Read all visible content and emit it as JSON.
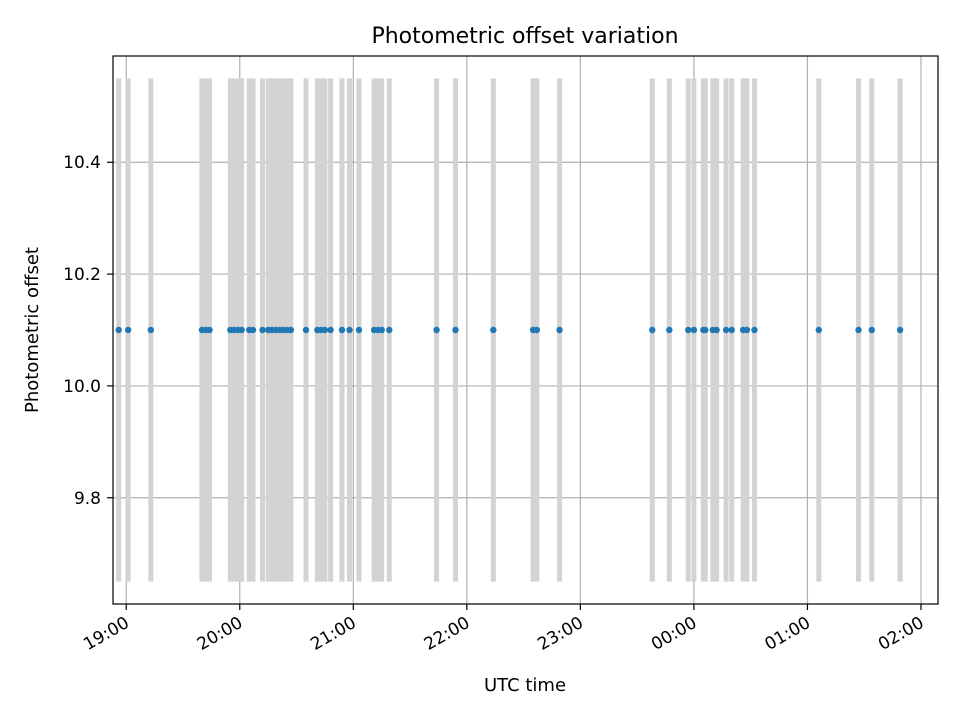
{
  "chart_data": {
    "type": "scatter",
    "title": "Photometric offset variation",
    "xlabel": "UTC time",
    "ylabel": "Photometric offset",
    "x_axis_type": "time",
    "xlim": [
      "18:53",
      "02:09"
    ],
    "ylim": [
      9.61,
      10.59
    ],
    "x_ticks": [
      "19:00",
      "20:00",
      "21:00",
      "22:00",
      "23:00",
      "00:00",
      "01:00",
      "02:00"
    ],
    "y_ticks": [
      "9.8",
      "10.0",
      "10.2",
      "10.4"
    ],
    "grid": true,
    "point_color": "#1f77b4",
    "bar_color": "#d3d3d3",
    "error_bar_range": [
      9.65,
      10.55
    ],
    "x": [
      "18:56",
      "19:01",
      "19:13",
      "19:40",
      "19:42",
      "19:44",
      "19:55",
      "19:57",
      "19:59",
      "20:01",
      "20:05",
      "20:07",
      "20:12",
      "20:15",
      "20:17",
      "20:19",
      "20:21",
      "20:23",
      "20:25",
      "20:27",
      "20:35",
      "20:41",
      "20:43",
      "20:45",
      "20:48",
      "20:54",
      "20:58",
      "21:03",
      "21:11",
      "21:13",
      "21:15",
      "21:19",
      "21:44",
      "21:54",
      "22:14",
      "22:35",
      "22:37",
      "22:49",
      "23:38",
      "23:47",
      "23:57",
      "00:00",
      "00:05",
      "00:06",
      "00:10",
      "00:12",
      "00:17",
      "00:20",
      "00:26",
      "00:28",
      "00:32",
      "01:06",
      "01:27",
      "01:34",
      "01:49"
    ],
    "y": [
      10.1,
      10.1,
      10.1,
      10.1,
      10.1,
      10.1,
      10.1,
      10.1,
      10.1,
      10.1,
      10.1,
      10.1,
      10.1,
      10.1,
      10.1,
      10.1,
      10.1,
      10.1,
      10.1,
      10.1,
      10.1,
      10.1,
      10.1,
      10.1,
      10.1,
      10.1,
      10.1,
      10.1,
      10.1,
      10.1,
      10.1,
      10.1,
      10.1,
      10.1,
      10.1,
      10.1,
      10.1,
      10.1,
      10.1,
      10.1,
      10.1,
      10.1,
      10.1,
      10.1,
      10.1,
      10.1,
      10.1,
      10.1,
      10.1,
      10.1,
      10.1,
      10.1,
      10.1,
      10.1,
      10.1
    ]
  }
}
